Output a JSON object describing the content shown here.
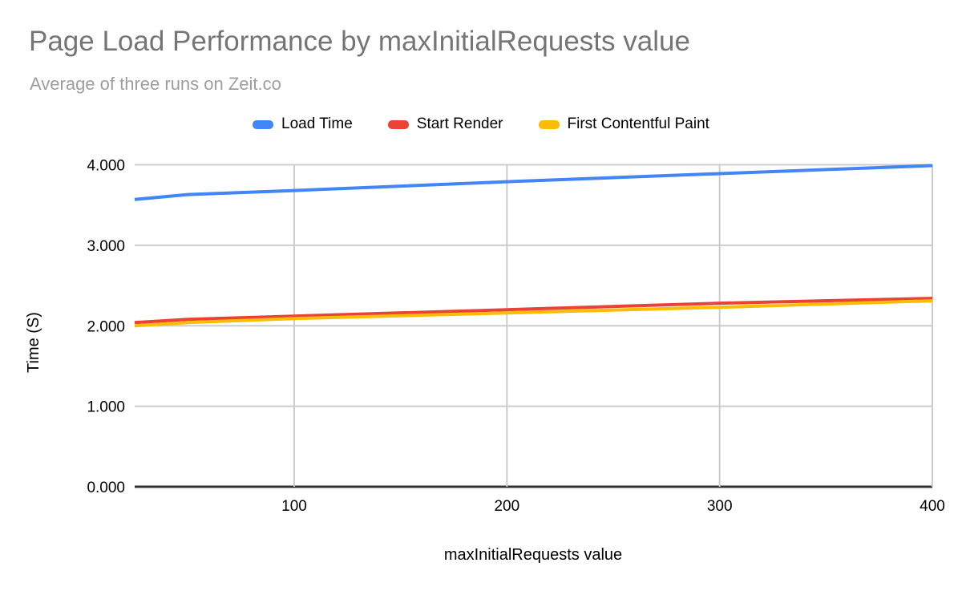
{
  "chart_data": {
    "type": "line",
    "title": "Page Load Performance by maxInitialRequests value",
    "subtitle": "Average of three runs on Zeit.co",
    "xlabel": "maxInitialRequests value",
    "ylabel": "Time (S)",
    "x": [
      25,
      50,
      100,
      200,
      300,
      400
    ],
    "series": [
      {
        "name": "Load Time",
        "color": "#4285F4",
        "values": [
          3.57,
          3.63,
          3.68,
          3.79,
          3.89,
          3.99
        ]
      },
      {
        "name": "Start Render",
        "color": "#EA4335",
        "values": [
          2.04,
          2.08,
          2.12,
          2.2,
          2.28,
          2.34
        ]
      },
      {
        "name": "First Contentful Paint",
        "color": "#FBBC04",
        "values": [
          2.0,
          2.04,
          2.09,
          2.16,
          2.23,
          2.31
        ]
      }
    ],
    "xlim": [
      25,
      400
    ],
    "ylim": [
      0,
      4
    ],
    "x_ticks": [
      "100",
      "200",
      "300",
      "400"
    ],
    "y_ticks": [
      "0.000",
      "1.000",
      "2.000",
      "3.000",
      "4.000"
    ],
    "grid": true,
    "legend_position": "top"
  },
  "colors": {
    "title_text": "#757575",
    "subtitle_text": "#9e9e9e",
    "gridline": "#cccccc",
    "baseline": "#333333",
    "tick_text": "#000000"
  }
}
